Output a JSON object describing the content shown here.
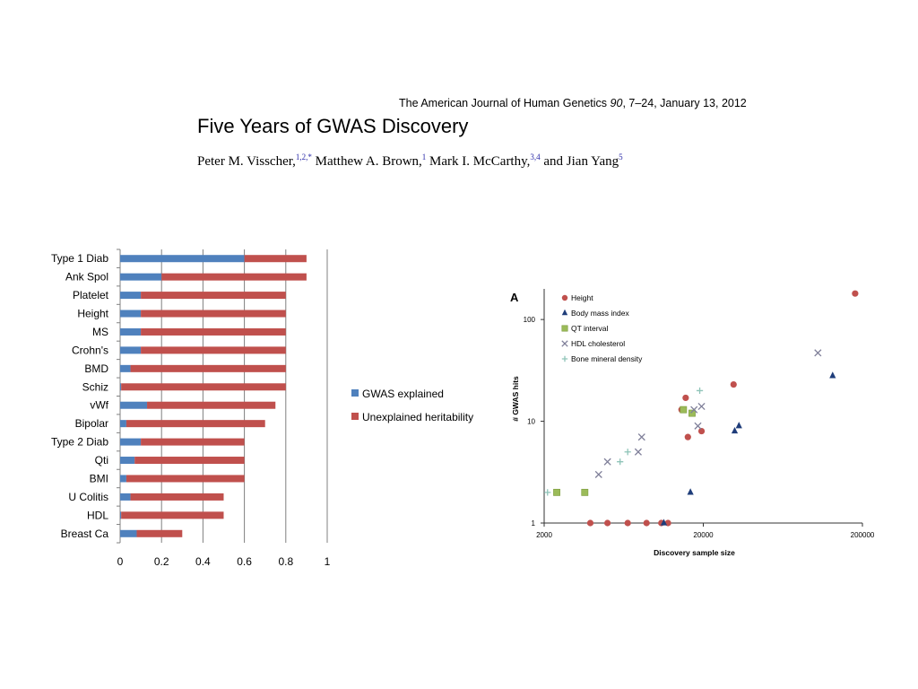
{
  "header": {
    "journal_name": "The American Journal of Human Genetics",
    "journal_volume": "90",
    "journal_pages": ", 7–24, January 13, 2012",
    "title": "Five Years of GWAS Discovery",
    "authors": [
      {
        "name": "Peter M. Visscher,",
        "aff": "1,2,*"
      },
      {
        "name": " Matthew A. Brown,",
        "aff": "1"
      },
      {
        "name": " Mark I. McCarthy,",
        "aff": "3,4"
      },
      {
        "name": " and Jian Yang",
        "aff": "5"
      }
    ]
  },
  "chart_data": [
    {
      "type": "bar",
      "orientation": "horizontal",
      "stacked": true,
      "categories": [
        "Type 1 Diab",
        "Ank Spol",
        "Platelet",
        "Height",
        "MS",
        "Crohn's",
        "BMD",
        "Schiz",
        "vWf",
        "Bipolar",
        "Type 2 Diab",
        "Qti",
        "BMI",
        "U Colitis",
        "HDL",
        "Breast Ca"
      ],
      "series": [
        {
          "name": "GWAS explained",
          "color": "#4f81bd",
          "values": [
            0.6,
            0.2,
            0.1,
            0.1,
            0.1,
            0.1,
            0.05,
            0.005,
            0.13,
            0.03,
            0.1,
            0.07,
            0.03,
            0.05,
            0.005,
            0.08
          ]
        },
        {
          "name": "Unexplained heritability",
          "color": "#c0504d",
          "values": [
            0.3,
            0.7,
            0.7,
            0.7,
            0.7,
            0.7,
            0.75,
            0.795,
            0.62,
            0.67,
            0.5,
            0.53,
            0.57,
            0.45,
            0.495,
            0.22
          ]
        }
      ],
      "xlim": [
        0,
        1
      ],
      "xticks": [
        "0",
        "0.2",
        "0.4",
        "0.6",
        "0.8",
        "1"
      ],
      "grid": true,
      "legend_position": "right"
    },
    {
      "type": "scatter",
      "panel_label": "A",
      "xlabel": "Discovery sample size",
      "ylabel": "# GWAS hits",
      "xscale": "log",
      "yscale": "log",
      "xlim": [
        2000,
        200000
      ],
      "ylim": [
        1,
        200
      ],
      "xticks": [
        "2000",
        "20000",
        "200000"
      ],
      "yticks": [
        "1",
        "10",
        "100"
      ],
      "legend_position": "top-left",
      "series": [
        {
          "name": "Height",
          "marker": "circle",
          "color": "#c0504d",
          "points": [
            [
              3900,
              1
            ],
            [
              5000,
              1
            ],
            [
              6700,
              1
            ],
            [
              8800,
              1
            ],
            [
              10900,
              1
            ],
            [
              12000,
              1
            ],
            [
              14600,
              13
            ],
            [
              15500,
              17
            ],
            [
              16000,
              7
            ],
            [
              19500,
              8
            ],
            [
              31000,
              23
            ],
            [
              180000,
              180
            ]
          ]
        },
        {
          "name": "Body mass index",
          "marker": "triangle",
          "color": "#1f3d7a",
          "points": [
            [
              11300,
              1
            ],
            [
              16600,
              2
            ],
            [
              31500,
              8
            ],
            [
              33500,
              9
            ],
            [
              130000,
              28
            ]
          ]
        },
        {
          "name": "QT interval",
          "marker": "square",
          "color": "#9bbb59",
          "points": [
            [
              2400,
              2
            ],
            [
              3600,
              2
            ],
            [
              15000,
              13
            ],
            [
              17000,
              12
            ]
          ]
        },
        {
          "name": "HDL cholesterol",
          "marker": "x",
          "color": "#7f7f99",
          "points": [
            [
              4400,
              3
            ],
            [
              5000,
              4
            ],
            [
              7800,
              5
            ],
            [
              8200,
              7
            ],
            [
              17500,
              13
            ],
            [
              18500,
              9
            ],
            [
              19500,
              14
            ],
            [
              105000,
              47
            ]
          ]
        },
        {
          "name": "Bone mineral density",
          "marker": "plus",
          "color": "#8fc4b8",
          "points": [
            [
              2100,
              2
            ],
            [
              6000,
              4
            ],
            [
              6700,
              5
            ],
            [
              19000,
              20
            ]
          ]
        }
      ]
    }
  ]
}
